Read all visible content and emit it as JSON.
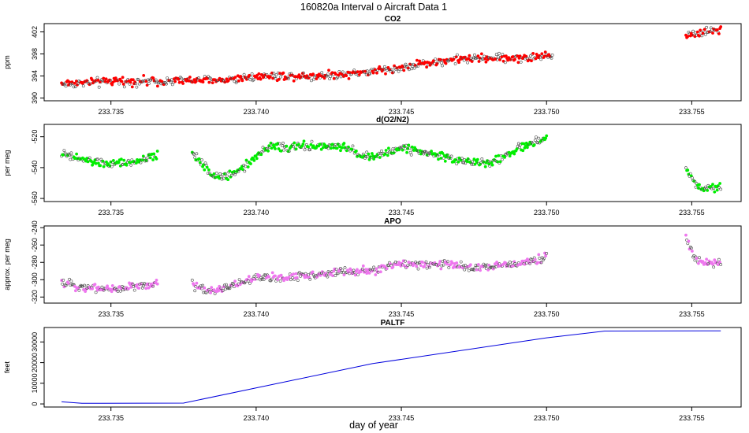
{
  "figure": {
    "title": "160820a   Interval o Aircraft Data 1",
    "xlabel": "day of year",
    "x_ticks": [
      233.735,
      233.74,
      233.745,
      233.75,
      233.755
    ],
    "x_tick_labels": [
      "233.735",
      "233.740",
      "233.745",
      "233.750",
      "233.755"
    ]
  },
  "chart_data": [
    {
      "id": "co2",
      "type": "scatter",
      "title": "CO2",
      "ylabel": "ppm",
      "color": "#ff0000",
      "xlim": [
        233.7327,
        233.7567
      ],
      "ylim": [
        389.5,
        403.5
      ],
      "y_ticks": [
        390,
        394,
        398,
        402
      ],
      "y_tick_labels": [
        "390",
        "394",
        "398",
        "402"
      ],
      "segments": [
        {
          "x": [
            233.7333,
            233.735,
            233.737,
            233.739,
            233.74,
            233.742,
            233.744,
            233.745,
            233.746,
            233.747,
            233.748,
            233.749,
            233.7502
          ],
          "y": [
            392.6,
            393.0,
            393.1,
            393.3,
            394.0,
            394.0,
            394.8,
            395.5,
            396.5,
            397.0,
            397.3,
            397.2,
            397.7
          ]
        },
        {
          "x": [
            233.7548,
            233.7552,
            233.7556,
            233.756
          ],
          "y": [
            401.4,
            401.8,
            402.2,
            402.3
          ]
        }
      ]
    },
    {
      "id": "o2n2",
      "type": "scatter",
      "title": "d(O2/N2)",
      "ylabel": "per meg",
      "color": "#00ee00",
      "xlim": [
        233.7327,
        233.7567
      ],
      "ylim": [
        -562,
        -512
      ],
      "y_ticks": [
        -560,
        -540,
        -520
      ],
      "y_tick_labels": [
        "-560",
        "-540",
        "-520"
      ],
      "segments": [
        {
          "x": [
            233.7333,
            233.734,
            233.735,
            233.736,
            233.7366
          ],
          "y": [
            -531,
            -535,
            -538,
            -536,
            -532
          ]
        },
        {
          "x": [
            233.7378,
            233.7385,
            233.739,
            233.7395,
            233.74,
            233.7405,
            233.741,
            233.742,
            233.743,
            233.744,
            233.745,
            233.746,
            233.747,
            233.748,
            233.749,
            233.75
          ],
          "y": [
            -530,
            -545,
            -546,
            -540,
            -533,
            -526,
            -527,
            -526,
            -527,
            -534,
            -527,
            -531,
            -535,
            -538,
            -528,
            -521
          ]
        },
        {
          "x": [
            233.7548,
            233.7551,
            233.7553,
            233.7556,
            233.756
          ],
          "y": [
            -540,
            -550,
            -553,
            -554,
            -552
          ]
        }
      ]
    },
    {
      "id": "apo",
      "type": "scatter",
      "title": "APO",
      "ylabel": "approx. per meg",
      "color": "#ee77ee",
      "xlim": [
        233.7327,
        233.7567
      ],
      "ylim": [
        -327,
        -238
      ],
      "y_ticks": [
        -320,
        -300,
        -280,
        -260,
        -240
      ],
      "y_tick_labels": [
        "-320",
        "-300",
        "-280",
        "-260",
        "-240"
      ],
      "segments": [
        {
          "x": [
            233.7333,
            233.734,
            233.735,
            233.736,
            233.7366
          ],
          "y": [
            -304,
            -308,
            -311,
            -307,
            -306
          ]
        },
        {
          "x": [
            233.7378,
            233.7385,
            233.739,
            233.74,
            233.741,
            233.742,
            233.743,
            233.744,
            233.745,
            233.746,
            233.747,
            233.748,
            233.749,
            233.75
          ],
          "y": [
            -306,
            -313,
            -308,
            -298,
            -298,
            -294,
            -291,
            -290,
            -281,
            -282,
            -284,
            -286,
            -281,
            -274
          ]
        },
        {
          "x": [
            233.7548,
            233.7551,
            233.7555,
            233.756
          ],
          "y": [
            -251,
            -276,
            -281,
            -280
          ]
        }
      ]
    },
    {
      "id": "paltf",
      "type": "line",
      "title": "PALTF",
      "ylabel": "feet",
      "color": "#0000dd",
      "xlim": [
        233.7327,
        233.7567
      ],
      "ylim": [
        -1500,
        37000
      ],
      "y_ticks": [
        0,
        10000,
        20000,
        30000
      ],
      "y_tick_labels": [
        "0",
        "10000",
        "20000",
        "30000"
      ],
      "x": [
        233.7333,
        233.734,
        233.7375,
        233.744,
        233.75,
        233.752,
        233.756
      ],
      "y": [
        1000,
        300,
        400,
        19500,
        32000,
        35300,
        35400
      ]
    }
  ]
}
